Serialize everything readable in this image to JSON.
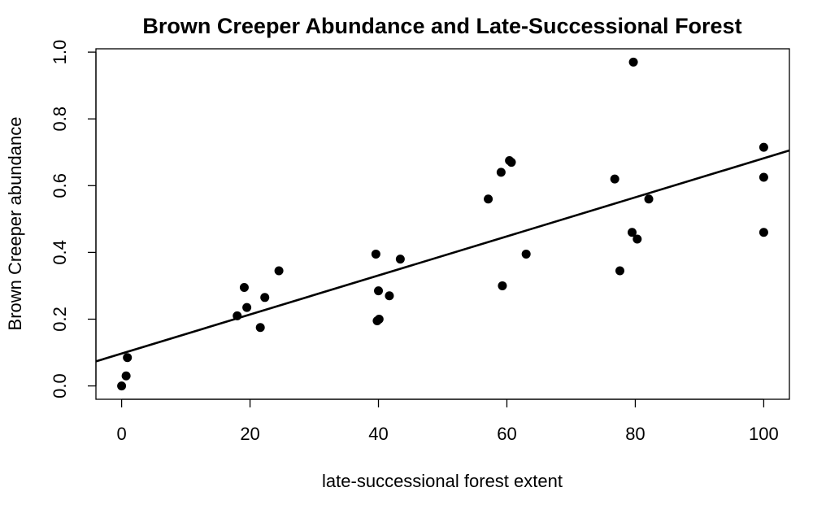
{
  "chart_data": {
    "type": "scatter",
    "title": "Brown Creeper Abundance and Late-Successional Forest",
    "xlabel": "late-successional forest extent",
    "ylabel": "Brown Creeper abundance",
    "xlim": [
      -4,
      104
    ],
    "ylim": [
      -0.04,
      1.01
    ],
    "x_ticks": [
      0,
      20,
      40,
      60,
      80,
      100
    ],
    "x_tick_labels": [
      "0",
      "20",
      "40",
      "60",
      "80",
      "100"
    ],
    "y_ticks": [
      0.0,
      0.2,
      0.4,
      0.6,
      0.8,
      1.0
    ],
    "y_tick_labels": [
      "0.0",
      "0.2",
      "0.4",
      "0.6",
      "0.8",
      "1.0"
    ],
    "grid": false,
    "legend": "none",
    "point_color": "#000000",
    "points": [
      {
        "x": 0,
        "y": 0.0
      },
      {
        "x": 0.7,
        "y": 0.03
      },
      {
        "x": 0.9,
        "y": 0.085
      },
      {
        "x": 18,
        "y": 0.21
      },
      {
        "x": 19.1,
        "y": 0.295
      },
      {
        "x": 19.5,
        "y": 0.235
      },
      {
        "x": 21.6,
        "y": 0.175
      },
      {
        "x": 22.3,
        "y": 0.265
      },
      {
        "x": 24.5,
        "y": 0.345
      },
      {
        "x": 39.6,
        "y": 0.395
      },
      {
        "x": 39.8,
        "y": 0.195
      },
      {
        "x": 40.0,
        "y": 0.285
      },
      {
        "x": 40.1,
        "y": 0.2
      },
      {
        "x": 41.7,
        "y": 0.27
      },
      {
        "x": 43.4,
        "y": 0.38
      },
      {
        "x": 57.1,
        "y": 0.56
      },
      {
        "x": 59.1,
        "y": 0.64
      },
      {
        "x": 59.3,
        "y": 0.3
      },
      {
        "x": 60.4,
        "y": 0.675
      },
      {
        "x": 60.7,
        "y": 0.67
      },
      {
        "x": 63.0,
        "y": 0.395
      },
      {
        "x": 76.8,
        "y": 0.62
      },
      {
        "x": 77.6,
        "y": 0.345
      },
      {
        "x": 79.5,
        "y": 0.46
      },
      {
        "x": 79.7,
        "y": 0.97
      },
      {
        "x": 80.3,
        "y": 0.44
      },
      {
        "x": 82.1,
        "y": 0.56
      },
      {
        "x": 100,
        "y": 0.715
      },
      {
        "x": 100,
        "y": 0.625
      },
      {
        "x": 100,
        "y": 0.46
      }
    ],
    "fit_line": {
      "intercept": 0.097,
      "slope": 0.00585
    }
  }
}
